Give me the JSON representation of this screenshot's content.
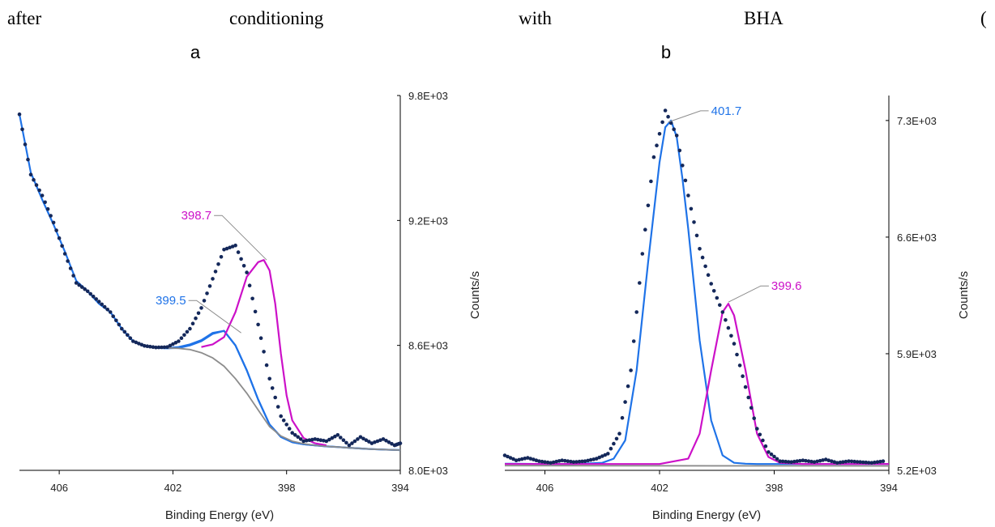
{
  "caption": {
    "words": [
      "after",
      "conditioning",
      "with",
      "BHA",
      "("
    ]
  },
  "colors": {
    "data_points": "#14285a",
    "fit_blue": "#1f73e8",
    "fit_magenta": "#cc11c8",
    "background": "#8c8c8c",
    "axis": "#000000",
    "leader": "#8c8c8c"
  },
  "chart_data": [
    {
      "panel": "a",
      "type": "line",
      "xlabel": "Binding Energy (eV)",
      "ylabel": "Counts/s",
      "xlim": [
        407.4,
        394
      ],
      "ylim": [
        8000,
        9800
      ],
      "x_reversed": true,
      "xticks": [
        406,
        402,
        398,
        394
      ],
      "xtick_labels": [
        "406",
        "402",
        "398",
        "394"
      ],
      "yticks": [
        8000,
        8600,
        9200,
        9800
      ],
      "ytick_labels": [
        "8.0E+03",
        "8.6E+03",
        "9.2E+03",
        "9.8E+03"
      ],
      "series": [
        {
          "role": "data_points",
          "style": "dots",
          "x": [
            407.4,
            407.0,
            406.6,
            406.2,
            405.8,
            405.4,
            405.0,
            404.6,
            404.2,
            403.8,
            403.4,
            403.0,
            402.6,
            402.2,
            401.8,
            401.4,
            401.0,
            400.6,
            400.2,
            399.8,
            399.4,
            399.0,
            398.6,
            398.2,
            397.8,
            397.4,
            397.0,
            396.6,
            396.2,
            395.8,
            395.4,
            395.0,
            394.6,
            394.2,
            394.0
          ],
          "y": [
            9710,
            9420,
            9320,
            9190,
            9040,
            8900,
            8860,
            8810,
            8760,
            8680,
            8620,
            8598,
            8590,
            8592,
            8620,
            8680,
            8780,
            8920,
            9060,
            9080,
            8950,
            8700,
            8440,
            8260,
            8180,
            8140,
            8150,
            8140,
            8170,
            8120,
            8160,
            8130,
            8150,
            8120,
            8130
          ]
        },
        {
          "role": "envelope",
          "style": "line",
          "colorKey": "fit_blue",
          "x": [
            407.4,
            407.0,
            406.6,
            406.2,
            405.8,
            405.4,
            405.0,
            404.6,
            404.2,
            403.8,
            403.4,
            403.0,
            402.6,
            402.2,
            401.8,
            401.4,
            401.0,
            400.6,
            400.2,
            399.8,
            399.4,
            399.0,
            398.6,
            398.2,
            397.8,
            397.4,
            397.0,
            396.6,
            396.2,
            395.8,
            395.4,
            395.0,
            394.6,
            394.2,
            394.0
          ],
          "y": [
            9710,
            9430,
            9300,
            9180,
            9050,
            8910,
            8860,
            8800,
            8760,
            8680,
            8620,
            8598,
            8590,
            8588,
            8592,
            8605,
            8625,
            8660,
            8670,
            8600,
            8480,
            8340,
            8220,
            8160,
            8135,
            8125,
            8120,
            8115,
            8112,
            8108,
            8105,
            8102,
            8100,
            8098,
            8097
          ]
        },
        {
          "role": "fit_component",
          "label": "399.5",
          "style": "line",
          "colorKey": "fit_blue",
          "x": [
            402.6,
            402.2,
            401.8,
            401.4,
            401.0,
            400.6,
            400.2,
            399.8,
            399.4,
            399.0,
            398.6,
            398.2,
            397.8,
            397.4,
            397.0,
            396.6,
            396.2,
            395.8,
            395.4,
            395.0,
            394.6,
            394.2,
            394.0
          ],
          "y": [
            8588,
            8586,
            8588,
            8600,
            8620,
            8655,
            8670,
            8600,
            8480,
            8340,
            8220,
            8160,
            8135,
            8125,
            8120,
            8115,
            8112,
            8108,
            8105,
            8102,
            8100,
            8098,
            8097
          ]
        },
        {
          "role": "fit_component",
          "label": "398.7",
          "style": "line",
          "colorKey": "fit_magenta",
          "x": [
            401.0,
            400.6,
            400.2,
            399.8,
            399.4,
            399.0,
            398.8,
            398.6,
            398.4,
            398.2,
            398.0,
            397.8,
            397.4,
            397.0,
            396.6
          ],
          "y": [
            8592,
            8605,
            8640,
            8760,
            8930,
            9000,
            9010,
            8960,
            8800,
            8560,
            8360,
            8240,
            8155,
            8130,
            8120
          ]
        },
        {
          "role": "background",
          "style": "line",
          "colorKey": "background",
          "x": [
            402.2,
            401.8,
            401.4,
            401.0,
            400.6,
            400.2,
            399.8,
            399.4,
            399.0,
            398.6,
            398.2,
            397.8,
            397.4,
            397.0,
            396.6,
            396.2,
            395.8,
            395.4,
            395.0,
            394.6,
            394.2,
            394.0
          ],
          "y": [
            8588,
            8586,
            8580,
            8565,
            8540,
            8500,
            8440,
            8370,
            8290,
            8210,
            8165,
            8140,
            8128,
            8120,
            8115,
            8112,
            8108,
            8105,
            8102,
            8100,
            8098,
            8097
          ]
        }
      ],
      "annotations": [
        {
          "label": "398.7",
          "colorKey": "fit_magenta",
          "x": 398.7,
          "y": 9010
        },
        {
          "label": "399.5",
          "colorKey": "fit_blue",
          "x": 399.6,
          "y": 8660
        }
      ]
    },
    {
      "panel": "b",
      "type": "line",
      "xlabel": "Binding Energy (eV)",
      "ylabel": "Counts/s",
      "xlim": [
        407.4,
        394
      ],
      "ylim": [
        5200,
        7450
      ],
      "x_reversed": true,
      "xticks": [
        406,
        402,
        398,
        394
      ],
      "xtick_labels": [
        "406",
        "402",
        "398",
        "394"
      ],
      "yticks": [
        5200,
        5900,
        6600,
        7300
      ],
      "ytick_labels": [
        "5.2E+03",
        "5.9E+03",
        "6.6E+03",
        "7.3E+03"
      ],
      "series": [
        {
          "role": "data_points",
          "style": "dots",
          "x": [
            407.4,
            407.0,
            406.6,
            406.2,
            405.8,
            405.4,
            405.0,
            404.6,
            404.2,
            403.8,
            403.4,
            403.0,
            402.6,
            402.2,
            401.8,
            401.4,
            401.0,
            400.6,
            400.2,
            399.8,
            399.4,
            399.0,
            398.6,
            398.2,
            397.8,
            397.4,
            397.0,
            396.6,
            396.2,
            395.8,
            395.4,
            395.0,
            394.6,
            394.2
          ],
          "y": [
            5290,
            5260,
            5275,
            5255,
            5245,
            5260,
            5250,
            5255,
            5270,
            5300,
            5420,
            5800,
            6500,
            7080,
            7360,
            7210,
            6850,
            6530,
            6320,
            6150,
            5960,
            5700,
            5450,
            5310,
            5255,
            5250,
            5260,
            5250,
            5265,
            5245,
            5255,
            5250,
            5245,
            5255
          ]
        },
        {
          "role": "fit_component",
          "label": "401.7",
          "style": "line",
          "colorKey": "fit_blue",
          "x": [
            407.4,
            406.0,
            405.0,
            404.0,
            403.6,
            403.2,
            402.8,
            402.4,
            402.0,
            401.8,
            401.6,
            401.4,
            401.2,
            401.0,
            400.6,
            400.2,
            399.8,
            399.4,
            399.0,
            398.6,
            398.2,
            397.8,
            397.0,
            396.0,
            395.0,
            394.0
          ],
          "y": [
            5240,
            5238,
            5238,
            5245,
            5270,
            5380,
            5800,
            6450,
            7050,
            7260,
            7300,
            7200,
            6950,
            6650,
            5980,
            5500,
            5290,
            5245,
            5240,
            5238,
            5238,
            5238,
            5238,
            5238,
            5238,
            5238
          ]
        },
        {
          "role": "fit_component",
          "label": "399.6",
          "style": "line",
          "colorKey": "fit_magenta",
          "x": [
            407.4,
            402.0,
            401.0,
            400.6,
            400.2,
            399.8,
            399.6,
            399.4,
            399.0,
            398.6,
            398.2,
            397.8,
            397.0,
            394.0
          ],
          "y": [
            5238,
            5238,
            5270,
            5420,
            5800,
            6150,
            6200,
            6130,
            5800,
            5420,
            5280,
            5245,
            5238,
            5238
          ]
        },
        {
          "role": "background",
          "style": "line",
          "colorKey": "background",
          "x": [
            407.4,
            394.0
          ],
          "y": [
            5228,
            5226
          ]
        }
      ],
      "annotations": [
        {
          "label": "401.7",
          "colorKey": "fit_blue",
          "x": 401.7,
          "y": 7290
        },
        {
          "label": "399.6",
          "colorKey": "fit_magenta",
          "x": 399.6,
          "y": 6210
        }
      ]
    }
  ]
}
